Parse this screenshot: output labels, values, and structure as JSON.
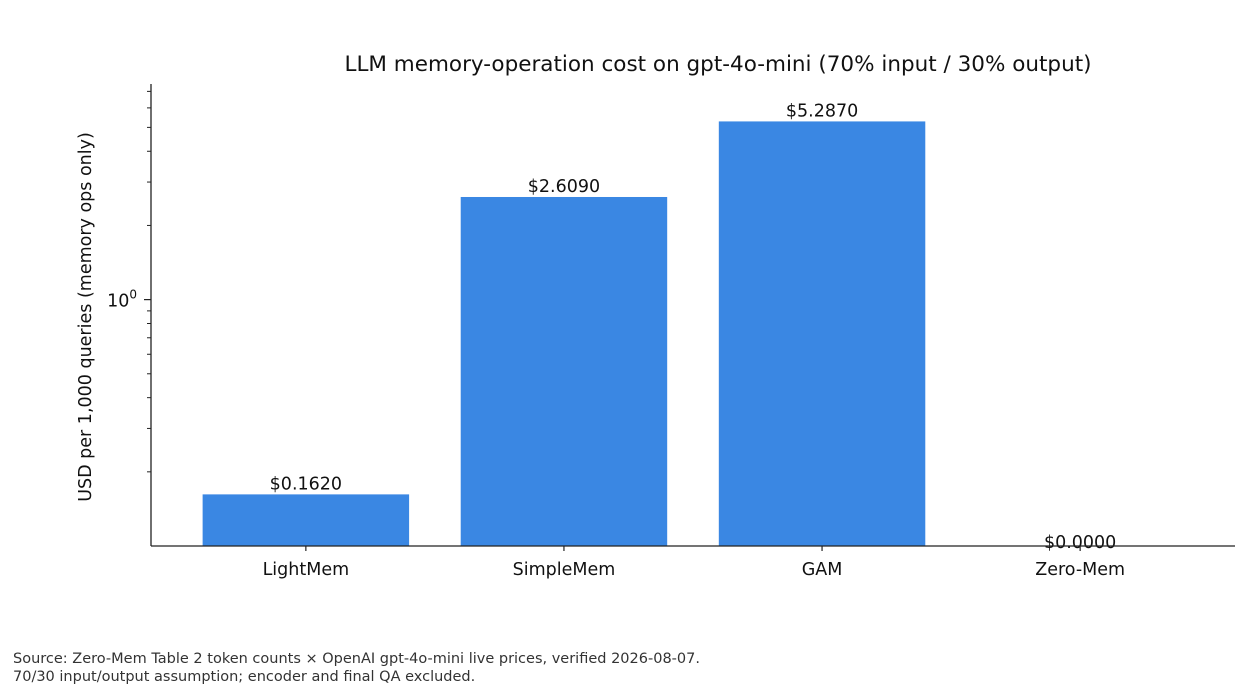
{
  "chart_data": {
    "type": "bar",
    "title": "LLM memory-operation cost on gpt-4o-mini (70% input / 30% output)",
    "xlabel": "",
    "ylabel": "USD per 1,000 queries (memory ops only)",
    "yscale": "log",
    "ylim": [
      0.1,
      7.5
    ],
    "categories": [
      "LightMem",
      "SimpleMem",
      "GAM",
      "Zero-Mem"
    ],
    "values": [
      0.162,
      2.609,
      5.287,
      0.0
    ],
    "data_labels": [
      "$0.1620",
      "$2.6090",
      "$5.2870",
      "$0.0000"
    ],
    "ytick_major": [
      {
        "value": 1,
        "base": "10",
        "exp": "0"
      }
    ],
    "ytick_minor": [
      0.2,
      0.3,
      0.4,
      0.5,
      0.6,
      0.7,
      0.8,
      0.9,
      2,
      3,
      4,
      5,
      6,
      7
    ],
    "bar_color": "#3a87e3",
    "grid": false,
    "legend": "none"
  },
  "footnote": {
    "line1": "Source: Zero-Mem Table 2 token counts × OpenAI gpt-4o-mini live prices, verified 2026-08-07.",
    "line2": "70/30 input/output assumption; encoder and final QA excluded."
  }
}
